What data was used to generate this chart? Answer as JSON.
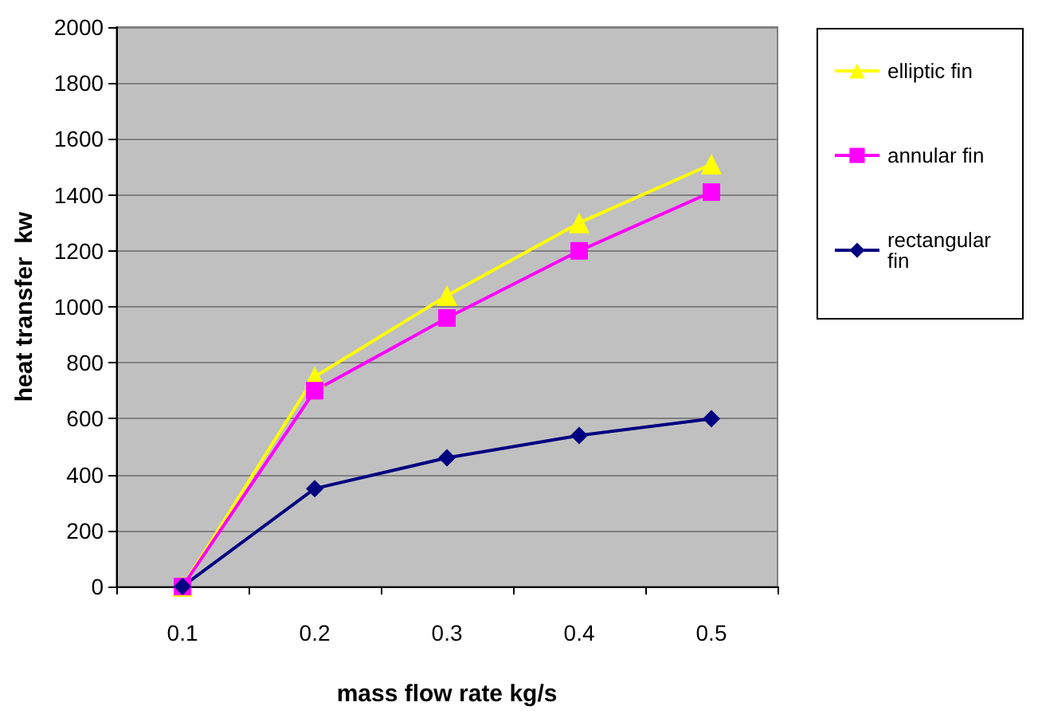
{
  "chart_data": {
    "type": "line",
    "xlabel": "mass flow rate kg/s",
    "ylabel": "heat transfer  kw",
    "categories": [
      "0.1",
      "0.2",
      "0.3",
      "0.4",
      "0.5"
    ],
    "series": [
      {
        "name": "elliptic fin",
        "color": "#ffff00",
        "marker": "triangle",
        "values": [
          0,
          750,
          1040,
          1300,
          1510
        ]
      },
      {
        "name": "annular fin",
        "color": "#ff00ff",
        "marker": "square",
        "values": [
          0,
          700,
          960,
          1200,
          1410
        ]
      },
      {
        "name": "rectangular\nfin",
        "color": "#000080",
        "marker": "diamond",
        "values": [
          0,
          350,
          460,
          540,
          600
        ]
      }
    ],
    "ylim": [
      0,
      2000
    ],
    "yticks": [
      0,
      200,
      400,
      600,
      800,
      1000,
      1200,
      1400,
      1600,
      1800,
      2000
    ],
    "grid": "y",
    "legend": "right"
  }
}
